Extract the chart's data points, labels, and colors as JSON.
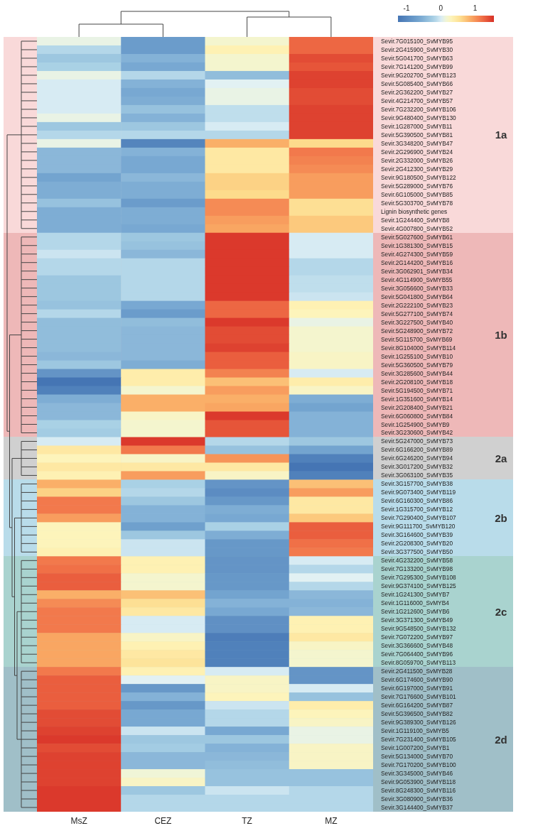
{
  "chart_data": {
    "type": "heatmap",
    "categories": [
      "MsZ",
      "CEZ",
      "TZ",
      "MZ"
    ],
    "y_categories": [
      "Sevir.7G015100_SvMYB95",
      "Sevir.2G415900_SvMYB30",
      "Sevir.5G041700_SvMYB63",
      "Sevir.7G141200_SvMYB99",
      "Sevir.9G202700_SvMYB123",
      "Sevir.5G085400_SvMYB66",
      "Sevir.2G362200_SvMYB27",
      "Sevir.4G214700_SvMYB57",
      "Sevir.7G232200_SvMYB106",
      "Sevir.9G480400_SvMYB130",
      "Sevir.1G287000_SvMYB11",
      "Sevir.5G390500_SvMYB81",
      "Sevir.3G348200_SvMYB47",
      "Sevir.2G296900_SvMYB24",
      "Sevir.2G332000_SvMYB26",
      "Sevir.2G412300_SvMYB29",
      "Sevir.9G180500_SvMYB122",
      "Sevir.5G289000_SvMYB76",
      "Sevir.6G105000_SvMYB85",
      "Sevir.5G303700_SvMYB78",
      "Lignin biosynthetic genes",
      "Sevir.1G244400_SvMYB8",
      "Sevir.4G007800_SvMYB52",
      "Sevir.5G027600_SvMYB61",
      "Sevir.1G381300_SvMYB15",
      "Sevir.4G274300_SvMYB59",
      "Sevir.2G144200_SvMYB16",
      "Sevir.3G062901_SvMYB34",
      "Sevir.4G114900_SvMYB55",
      "Sevir.3G056600_SvMYB33",
      "Sevir.5G041800_SvMYB64",
      "Sevir.2G222100_SvMYB23",
      "Sevir.5G277100_SvMYB74",
      "Sevir.3G227500_SvMYB40",
      "Sevir.5G248900_SvMYB72",
      "Sevir.5G115700_SvMYB69",
      "Sevir.8G104000_SvMYB114",
      "Sevir.1G255100_SvMYB10",
      "Sevir.5G360500_SvMYB79",
      "Sevir.3G285600_SvMYB44",
      "Sevir.2G208100_SvMYB18",
      "Sevir.5G194500_SvMYB71",
      "Sevir.1G351600_SvMYB14",
      "Sevir.2G208400_SvMYB21",
      "Sevir.6G060800_SvMYB84",
      "Sevir.1G254900_SvMYB9",
      "Sevir.3G230600_SvMYB42",
      "Sevir.5G247000_SvMYB73",
      "Sevir.6G166200_SvMYB89",
      "Sevir.6G246200_SvMYB94",
      "Sevir.3G017200_SvMYB32",
      "Sevir.3G063100_SvMYB35",
      "Sevir.3G157700_SvMYB38",
      "Sevir.9G073400_SvMYB119",
      "Sevir.6G160300_SvMYB86",
      "Sevir.1G315700_SvMYB12",
      "Sevir.7G290400_SvMYB107",
      "Sevir.9G111700_SvMYB120",
      "Sevir.3G164600_SvMYB39",
      "Sevir.2G208300_SvMYB20",
      "Sevir.3G377500_SvMYB50",
      "Sevir.4G232200_SvMYB58",
      "Sevir.7G133200_SvMYB98",
      "Sevir.7G295300_SvMYB108",
      "Sevir.9G374100_SvMYB125",
      "Sevir.1G241300_SvMYB7",
      "Sevir.1G116000_SvMYB4",
      "Sevir.1G212600_SvMYB6",
      "Sevir.3G371300_SvMYB49",
      "Sevir.9G548500_SvMYB132",
      "Sevir.7G072200_SvMYB97",
      "Sevir.3G366600_SvMYB48",
      "Sevir.7G064400_SvMYB96",
      "Sevir.8G059700_SvMYB113",
      "Sevir.2G411500_SvMYB28",
      "Sevir.6G174600_SvMYB90",
      "Sevir.6G197000_SvMYB91",
      "Sevir.7G176600_SvMYB101",
      "Sevir.6G164200_SvMYB87",
      "Sevir.5G396500_SvMYB82",
      "Sevir.9G389300_SvMYB126",
      "Sevir.1G119100_SvMYB5",
      "Sevir.7G231400_SvMYB105",
      "Sevir.1G007200_SvMYB1",
      "Sevir.5G134000_SvMYB70",
      "Sevir.7G170200_SvMYB100",
      "Sevir.3G345000_SvMYB46",
      "Sevir.9G053900_SvMYB118",
      "Sevir.8G248300_SvMYB116",
      "Sevir.3G080900_SvMYB36",
      "Sevir.3G144400_SvMYB37"
    ],
    "cells": [
      [
        0.1,
        -0.75,
        0.2,
        1.25
      ],
      [
        -0.15,
        -0.75,
        0.35,
        1.25
      ],
      [
        -0.3,
        -0.5,
        0.2,
        1.4
      ],
      [
        -0.2,
        -0.6,
        0.2,
        1.35
      ],
      [
        0.1,
        -0.15,
        -0.4,
        1.45
      ],
      [
        0.0,
        -0.5,
        0.05,
        1.45
      ],
      [
        0.0,
        -0.6,
        0.1,
        1.4
      ],
      [
        0.0,
        -0.55,
        0.1,
        1.4
      ],
      [
        0.0,
        -0.35,
        -0.1,
        1.45
      ],
      [
        0.1,
        -0.5,
        -0.1,
        1.45
      ],
      [
        -0.3,
        -0.3,
        0.0,
        1.45
      ],
      [
        -0.15,
        -0.15,
        -0.15,
        1.45
      ],
      [
        0.1,
        -1.05,
        0.85,
        0.6
      ],
      [
        -0.45,
        -0.5,
        0.45,
        1.15
      ],
      [
        -0.45,
        -0.6,
        0.45,
        1.1
      ],
      [
        -0.45,
        -0.6,
        0.45,
        1.05
      ],
      [
        -0.65,
        -0.45,
        0.65,
        0.95
      ],
      [
        -0.55,
        -0.55,
        0.65,
        0.95
      ],
      [
        -0.55,
        -0.55,
        0.6,
        0.95
      ],
      [
        -0.35,
        -0.75,
        1.05,
        0.55
      ],
      [
        -0.55,
        -0.55,
        1.05,
        0.55
      ],
      [
        -0.55,
        -0.55,
        0.95,
        0.7
      ],
      [
        -0.55,
        -0.6,
        0.9,
        0.7
      ],
      [
        -0.15,
        -0.3,
        1.5,
        0.0
      ],
      [
        -0.15,
        -0.35,
        1.5,
        0.0
      ],
      [
        -0.05,
        -0.45,
        1.5,
        0.0
      ],
      [
        -0.15,
        -0.15,
        1.5,
        -0.15
      ],
      [
        -0.15,
        -0.15,
        1.5,
        -0.15
      ],
      [
        -0.3,
        -0.15,
        1.5,
        -0.1
      ],
      [
        -0.3,
        -0.15,
        1.5,
        -0.1
      ],
      [
        -0.3,
        -0.15,
        1.5,
        -0.05
      ],
      [
        -0.35,
        -0.6,
        1.25,
        0.35
      ],
      [
        -0.15,
        -0.75,
        1.25,
        0.3
      ],
      [
        -0.4,
        -0.4,
        1.5,
        0.1
      ],
      [
        -0.4,
        -0.45,
        1.4,
        0.2
      ],
      [
        -0.4,
        -0.45,
        1.4,
        0.2
      ],
      [
        -0.4,
        -0.45,
        1.45,
        0.2
      ],
      [
        -0.45,
        -0.45,
        1.3,
        0.25
      ],
      [
        -0.3,
        -0.55,
        1.3,
        0.25
      ],
      [
        -0.85,
        0.4,
        1.1,
        0.0
      ],
      [
        -1.25,
        0.4,
        0.75,
        0.4
      ],
      [
        -1.1,
        0.2,
        0.95,
        0.25
      ],
      [
        -0.55,
        0.85,
        0.85,
        -0.55
      ],
      [
        -0.45,
        0.85,
        0.9,
        -0.65
      ],
      [
        -0.45,
        0.25,
        1.5,
        -0.5
      ],
      [
        -0.2,
        0.2,
        1.35,
        -0.5
      ],
      [
        -0.25,
        0.2,
        1.35,
        -0.5
      ],
      [
        0.0,
        1.5,
        -0.15,
        -0.3
      ],
      [
        0.45,
        1.15,
        -0.35,
        -0.65
      ],
      [
        0.3,
        0.25,
        1.0,
        -1.1
      ],
      [
        0.45,
        0.45,
        0.45,
        -1.25
      ],
      [
        0.35,
        0.95,
        0.25,
        -1.1
      ],
      [
        0.85,
        -0.2,
        -0.85,
        0.75
      ],
      [
        0.65,
        -0.15,
        -0.95,
        0.95
      ],
      [
        1.15,
        -0.3,
        -0.8,
        0.45
      ],
      [
        1.15,
        -0.5,
        -0.55,
        0.45
      ],
      [
        0.95,
        -0.5,
        -0.6,
        0.7
      ],
      [
        0.3,
        -0.7,
        -0.2,
        1.3
      ],
      [
        0.3,
        -0.3,
        -0.55,
        1.3
      ],
      [
        0.3,
        -0.05,
        -0.8,
        1.2
      ],
      [
        0.35,
        -0.05,
        -0.8,
        1.15
      ],
      [
        1.15,
        0.35,
        -0.85,
        0.0
      ],
      [
        1.2,
        0.35,
        -0.85,
        -0.15
      ],
      [
        1.3,
        0.2,
        -0.8,
        0.05
      ],
      [
        1.3,
        0.2,
        -0.8,
        -0.15
      ],
      [
        0.85,
        0.75,
        -0.65,
        -0.45
      ],
      [
        1.05,
        0.55,
        -0.5,
        -0.5
      ],
      [
        1.15,
        0.45,
        -0.6,
        -0.45
      ],
      [
        1.15,
        0.0,
        -0.9,
        0.35
      ],
      [
        1.15,
        0.0,
        -0.9,
        0.35
      ],
      [
        0.9,
        0.25,
        -1.15,
        0.45
      ],
      [
        0.9,
        0.35,
        -1.1,
        0.25
      ],
      [
        0.9,
        0.45,
        -1.1,
        0.2
      ],
      [
        0.9,
        0.5,
        -1.1,
        0.2
      ],
      [
        1.15,
        0.35,
        0.0,
        -0.85
      ],
      [
        1.3,
        0.05,
        0.25,
        -0.85
      ],
      [
        1.3,
        -0.8,
        0.25,
        0.0
      ],
      [
        1.3,
        -0.5,
        0.3,
        -0.35
      ],
      [
        1.3,
        -0.8,
        -0.05,
        0.4
      ],
      [
        1.4,
        -0.6,
        -0.15,
        0.3
      ],
      [
        1.4,
        -0.6,
        -0.15,
        0.25
      ],
      [
        1.45,
        -0.05,
        -0.6,
        0.1
      ],
      [
        1.5,
        -0.3,
        -0.3,
        0.1
      ],
      [
        1.4,
        -0.25,
        -0.5,
        0.25
      ],
      [
        1.45,
        -0.45,
        -0.45,
        0.25
      ],
      [
        1.45,
        -0.45,
        -0.4,
        0.25
      ],
      [
        1.45,
        0.15,
        -0.35,
        -0.35
      ],
      [
        1.45,
        0.25,
        -0.35,
        -0.35
      ],
      [
        1.5,
        -0.3,
        -0.05,
        -0.15
      ],
      [
        1.5,
        -0.15,
        -0.15,
        -0.15
      ],
      [
        1.5,
        -0.15,
        -0.15,
        -0.15
      ]
    ],
    "clim": [
      -1.25,
      1.55
    ],
    "cticks": [
      -1,
      0,
      1
    ],
    "bands": [
      {
        "axis": "y",
        "from": "Sevir.7G015100_SvMYB95",
        "to": "Sevir.4G007800_SvMYB52",
        "label": "1a",
        "color": "#f9d9d9"
      },
      {
        "axis": "y",
        "from": "Sevir.5G027600_SvMYB61",
        "to": "Sevir.3G230600_SvMYB42",
        "label": "1b",
        "color": "#eeb8b8"
      },
      {
        "axis": "y",
        "from": "Sevir.5G247000_SvMYB73",
        "to": "Sevir.3G063100_SvMYB35",
        "label": "2a",
        "color": "#d0d0d0"
      },
      {
        "axis": "y",
        "from": "Sevir.3G157700_SvMYB38",
        "to": "Sevir.3G377500_SvMYB50",
        "label": "2b",
        "color": "#b9dcea"
      },
      {
        "axis": "y",
        "from": "Sevir.4G232200_SvMYB58",
        "to": "Sevir.8G059700_SvMYB113",
        "label": "2c",
        "color": "#a9d3cf"
      },
      {
        "axis": "y",
        "from": "Sevir.2G411500_SvMYB28",
        "to": "Sevir.3G144400_SvMYB37",
        "label": "2d",
        "color": "#a0bfc8"
      }
    ]
  }
}
